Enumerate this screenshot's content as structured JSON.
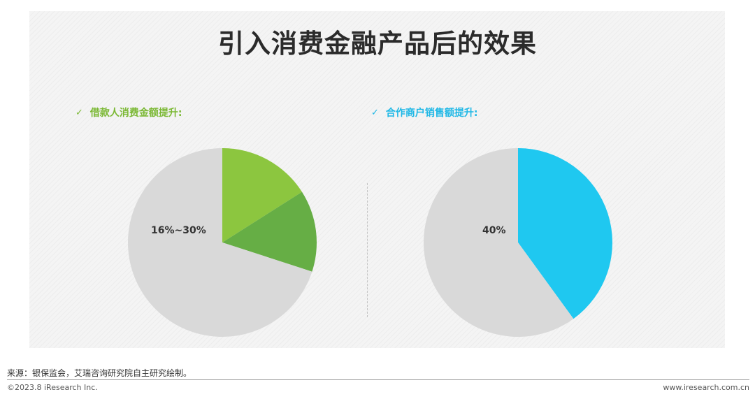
{
  "title": "引入消费金融产品后的效果",
  "colors": {
    "green_light": "#8CC63F",
    "green_dark": "#66AE45",
    "blue": "#1FC8F0",
    "grey": "#D9D9D9"
  },
  "chart_data": [
    {
      "type": "pie",
      "title": "借款人消费金额提升:",
      "check_icon": "checkmark-icon",
      "label": "16%~30%",
      "slices": [
        {
          "value": 16,
          "color": "#8CC63F"
        },
        {
          "value": 14,
          "color": "#66AE45"
        },
        {
          "value": 70,
          "color": "#D9D9D9"
        }
      ]
    },
    {
      "type": "pie",
      "title": "合作商户销售额提升:",
      "check_icon": "checkmark-icon",
      "label": "40%",
      "slices": [
        {
          "value": 40,
          "color": "#1FC8F0"
        },
        {
          "value": 60,
          "color": "#D9D9D9"
        }
      ]
    }
  ],
  "footer": {
    "source": "来源：银保监会，艾瑞咨询研究院自主研究绘制。",
    "copyright": "©2023.8 iResearch Inc.",
    "url": "www.iresearch.com.cn"
  }
}
